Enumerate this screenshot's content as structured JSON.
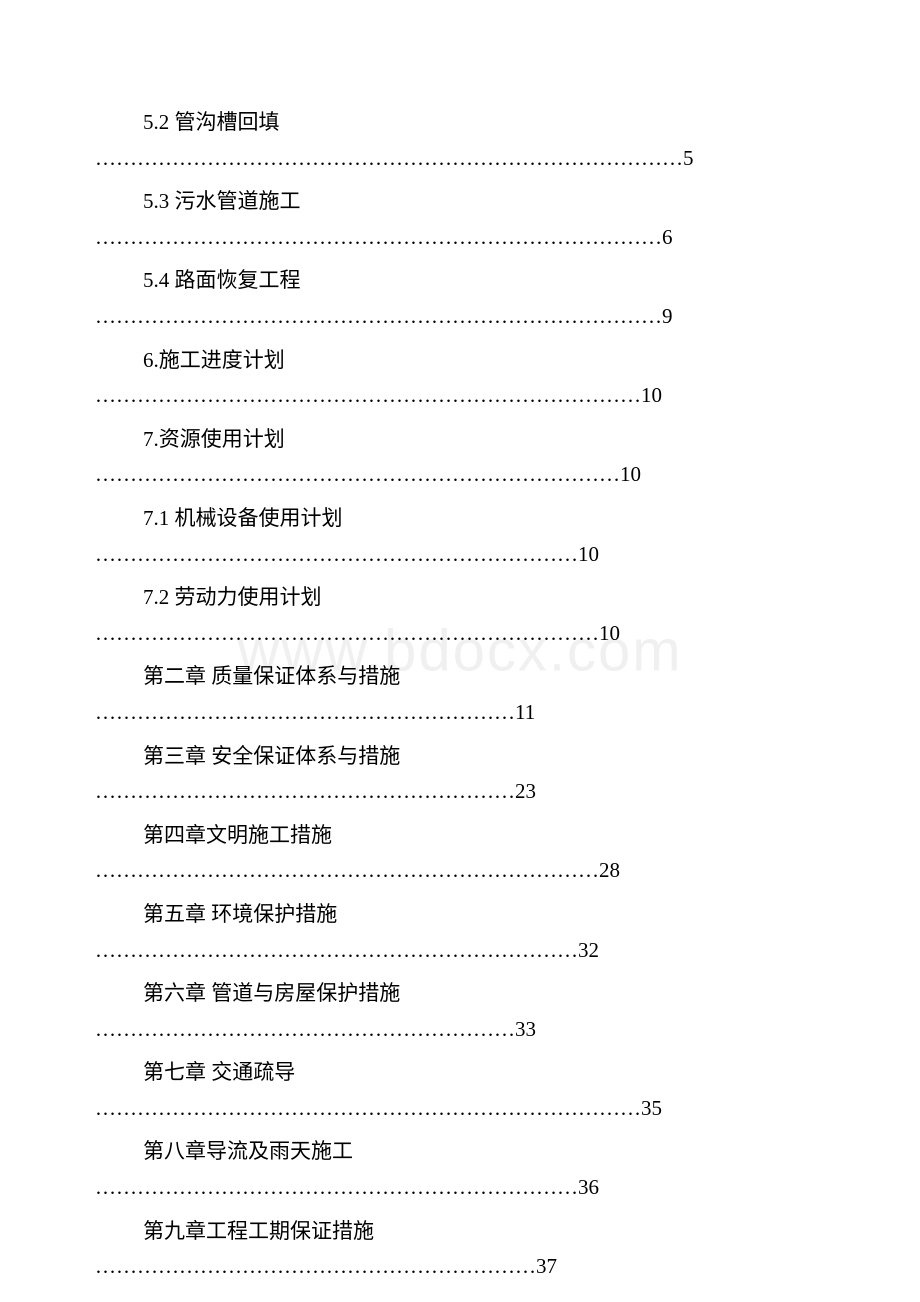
{
  "watermark": "www.bdocx.com",
  "background_color": "#ffffff",
  "text_color": "#000000",
  "watermark_color": "#f0f0f0",
  "font_size": 21,
  "entries": [
    {
      "title": "5.2 管沟槽回填",
      "page": "5",
      "dot_count": 56
    },
    {
      "title": "5.3 污水管道施工",
      "page": "6",
      "dot_count": 54
    },
    {
      "title": "5.4 路面恢复工程",
      "page": "9",
      "dot_count": 54
    },
    {
      "title": "6.施工进度计划",
      "page": "10",
      "dot_count": 52
    },
    {
      "title": "7.资源使用计划",
      "page": "10",
      "dot_count": 50
    },
    {
      "title": "7.1 机械设备使用计划",
      "page": "10",
      "dot_count": 46
    },
    {
      "title": "7.2 劳动力使用计划",
      "page": "10",
      "dot_count": 48
    },
    {
      "title": "第二章 质量保证体系与措施",
      "page": "11",
      "dot_count": 40
    },
    {
      "title": "第三章 安全保证体系与措施",
      "page": "23",
      "dot_count": 40
    },
    {
      "title": "第四章文明施工措施",
      "page": "28",
      "dot_count": 48
    },
    {
      "title": "第五章 环境保护措施",
      "page": "32",
      "dot_count": 46
    },
    {
      "title": "第六章 管道与房屋保护措施",
      "page": "33",
      "dot_count": 40
    },
    {
      "title": "第七章 交通疏导",
      "page": "35",
      "dot_count": 52
    },
    {
      "title": "第八章导流及雨天施工",
      "page": "36",
      "dot_count": 46
    },
    {
      "title": "第九章工程工期保证措施",
      "page": "37",
      "dot_count": 42
    }
  ]
}
